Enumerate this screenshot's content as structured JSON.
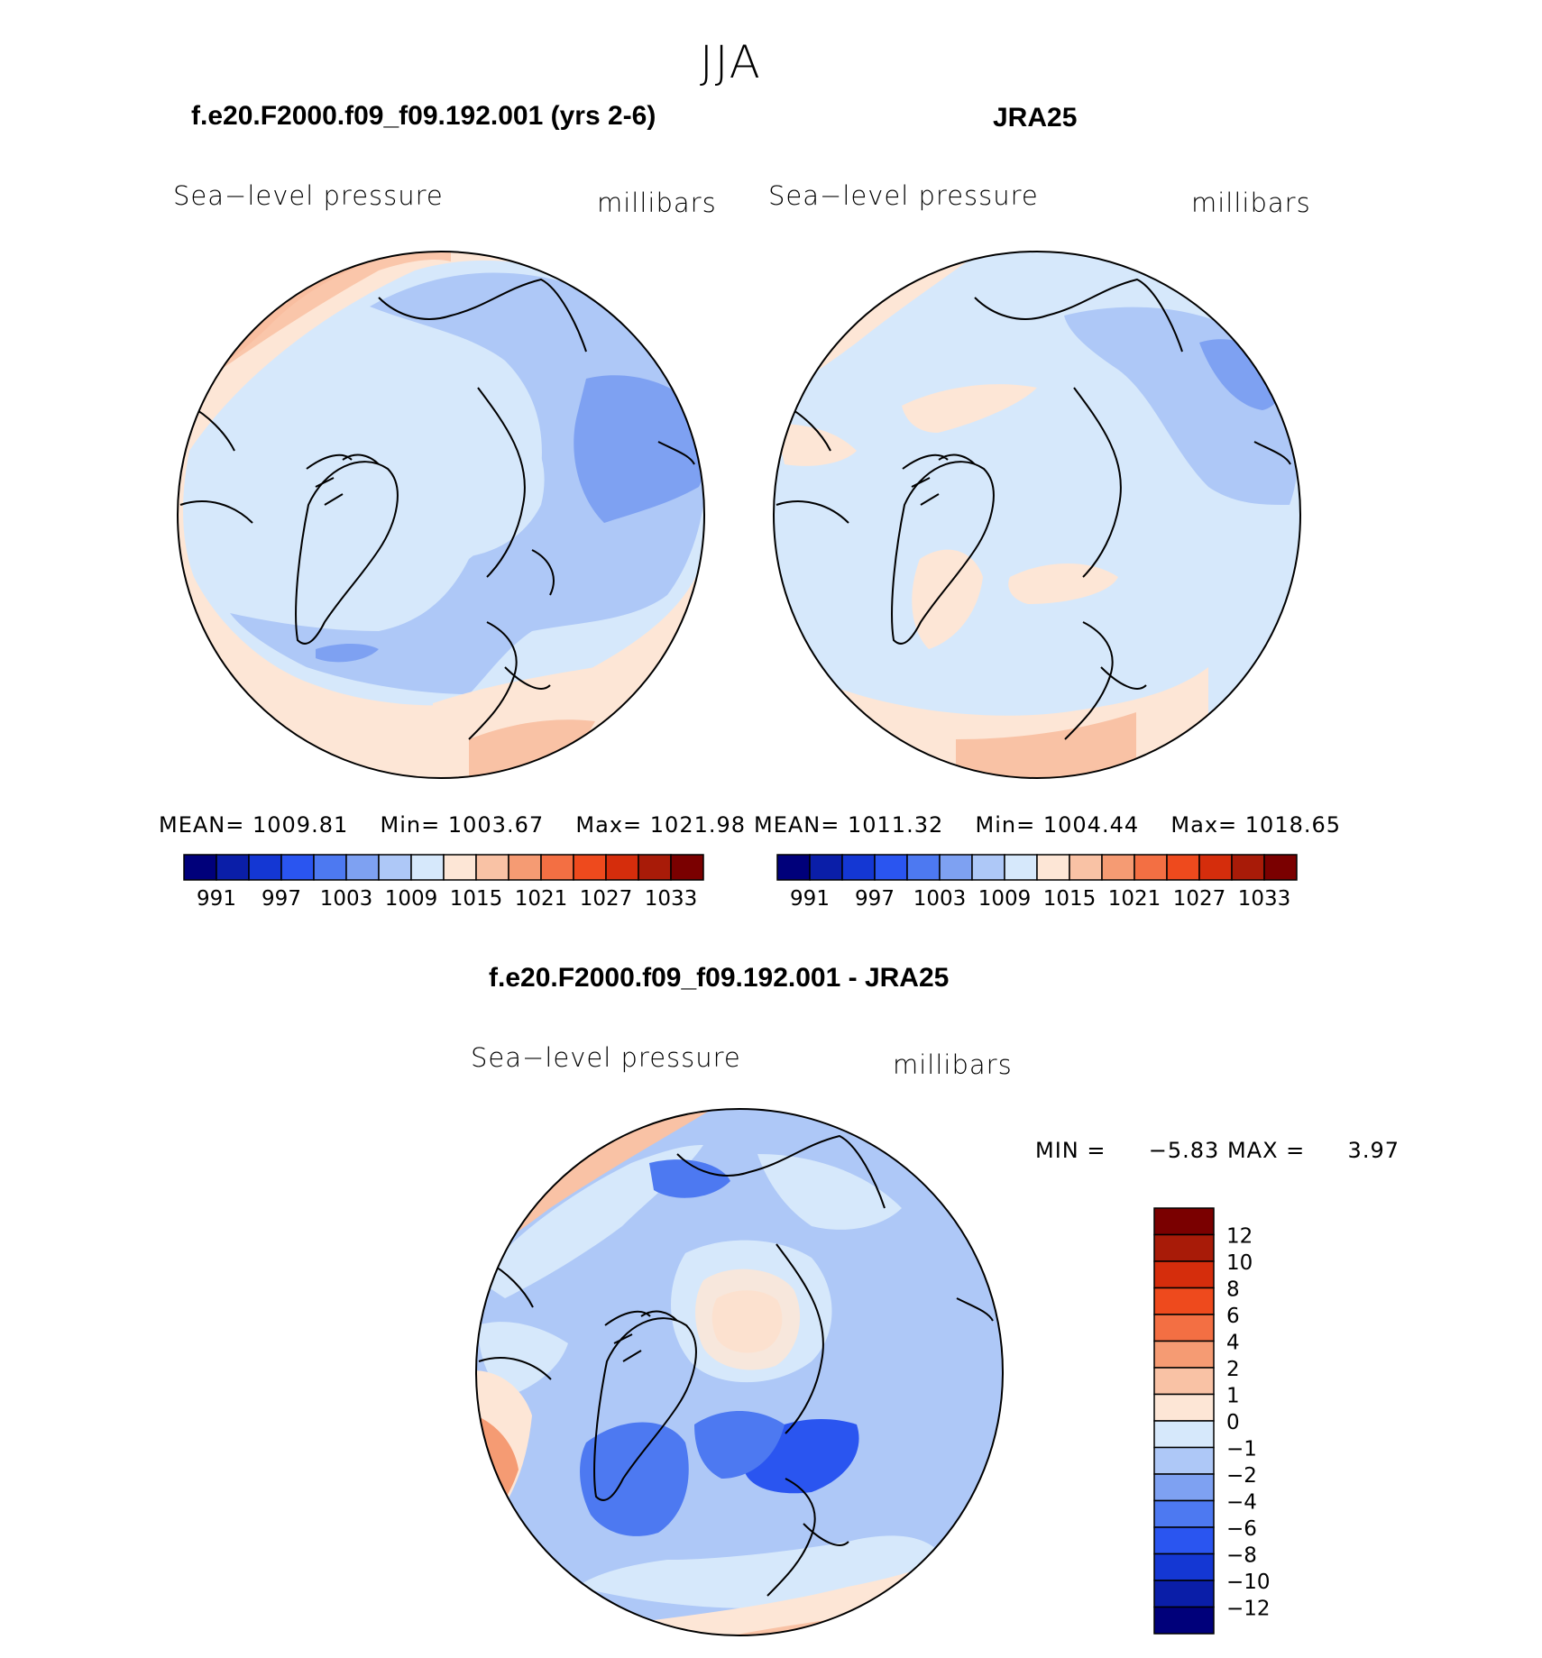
{
  "season": "JJA",
  "chart_data": [
    {
      "type": "heatmap",
      "title": "f.e20.F2000.f09_f09.192.001 (yrs 2-6)",
      "variable": "Sea−level pressure",
      "units": "millibars",
      "projection": "north-polar-stereographic",
      "stats": {
        "mean_label": "MEAN=",
        "mean": "1009.81",
        "min_label": "Min=",
        "min": "1003.67",
        "max_label": "Max=",
        "max": "1021.98"
      },
      "levels": [
        991,
        994,
        997,
        1000,
        1003,
        1006,
        1009,
        1012,
        1015,
        1018,
        1021,
        1024,
        1027,
        1030,
        1033
      ],
      "tick_labels": [
        "991",
        "997",
        "1003",
        "1009",
        "1015",
        "1021",
        "1027",
        "1033"
      ]
    },
    {
      "type": "heatmap",
      "title": "JRA25",
      "variable": "Sea−level pressure",
      "units": "millibars",
      "projection": "north-polar-stereographic",
      "stats": {
        "mean_label": "MEAN=",
        "mean": "1011.32",
        "min_label": "Min=",
        "min": "1004.44",
        "max_label": "Max=",
        "max": "1018.65"
      },
      "levels": [
        991,
        994,
        997,
        1000,
        1003,
        1006,
        1009,
        1012,
        1015,
        1018,
        1021,
        1024,
        1027,
        1030,
        1033
      ],
      "tick_labels": [
        "991",
        "997",
        "1003",
        "1009",
        "1015",
        "1021",
        "1027",
        "1033"
      ]
    },
    {
      "type": "heatmap",
      "title": "f.e20.F2000.f09_f09.192.001 - JRA25",
      "variable": "Sea−level pressure",
      "units": "millibars",
      "projection": "north-polar-stereographic",
      "stats": {
        "min_label": "MIN =",
        "min": "−5.83",
        "max_label": "MAX =",
        "max": "3.97"
      },
      "levels": [
        -12,
        -10,
        -8,
        -6,
        -4,
        -2,
        -1,
        0,
        1,
        2,
        4,
        6,
        8,
        10,
        12
      ],
      "tick_labels": [
        "12",
        "10",
        "8",
        "6",
        "4",
        "2",
        "1",
        "0",
        "−1",
        "−2",
        "−4",
        "−6",
        "−8",
        "−10",
        "−12"
      ]
    }
  ],
  "palette": [
    "#00007a",
    "#0a1ea8",
    "#1437d3",
    "#2a55f0",
    "#4d79f1",
    "#7ea1f2",
    "#aec8f7",
    "#d6e8fb",
    "#fde6d6",
    "#f9c2a5",
    "#f59b73",
    "#f36f43",
    "#ee4a1d",
    "#d52d0c",
    "#a81b08",
    "#7a0000"
  ]
}
